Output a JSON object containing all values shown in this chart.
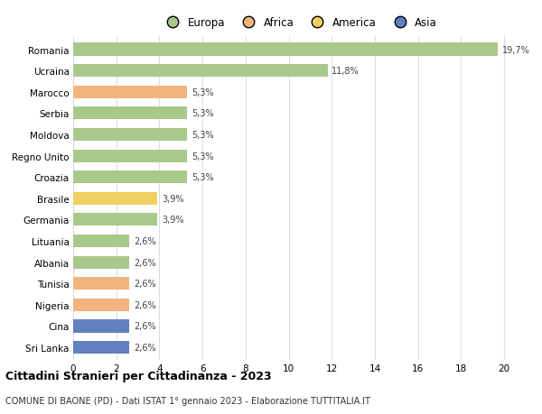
{
  "countries": [
    "Romania",
    "Ucraina",
    "Marocco",
    "Serbia",
    "Moldova",
    "Regno Unito",
    "Croazia",
    "Brasile",
    "Germania",
    "Lituania",
    "Albania",
    "Tunisia",
    "Nigeria",
    "Cina",
    "Sri Lanka"
  ],
  "values": [
    19.7,
    11.8,
    5.3,
    5.3,
    5.3,
    5.3,
    5.3,
    3.9,
    3.9,
    2.6,
    2.6,
    2.6,
    2.6,
    2.6,
    2.6
  ],
  "labels": [
    "19,7%",
    "11,8%",
    "5,3%",
    "5,3%",
    "5,3%",
    "5,3%",
    "5,3%",
    "3,9%",
    "3,9%",
    "2,6%",
    "2,6%",
    "2,6%",
    "2,6%",
    "2,6%",
    "2,6%"
  ],
  "continents": [
    "Europa",
    "Europa",
    "Africa",
    "Europa",
    "Europa",
    "Europa",
    "Europa",
    "America",
    "Europa",
    "Europa",
    "Europa",
    "Africa",
    "Africa",
    "Asia",
    "Asia"
  ],
  "continent_colors": {
    "Europa": "#a8c98a",
    "Africa": "#f2b47e",
    "America": "#f0d060",
    "Asia": "#6080c0"
  },
  "legend_items": [
    "Europa",
    "Africa",
    "America",
    "Asia"
  ],
  "legend_colors": [
    "#a8c98a",
    "#f2b47e",
    "#f0d060",
    "#6080c0"
  ],
  "xlim": [
    0,
    21
  ],
  "xticks": [
    0,
    2,
    4,
    6,
    8,
    10,
    12,
    14,
    16,
    18,
    20
  ],
  "title": "Cittadini Stranieri per Cittadinanza - 2023",
  "subtitle": "COMUNE DI BAONE (PD) - Dati ISTAT 1° gennaio 2023 - Elaborazione TUTTITALIA.IT",
  "background_color": "#ffffff",
  "grid_color": "#dddddd",
  "bar_height": 0.6
}
